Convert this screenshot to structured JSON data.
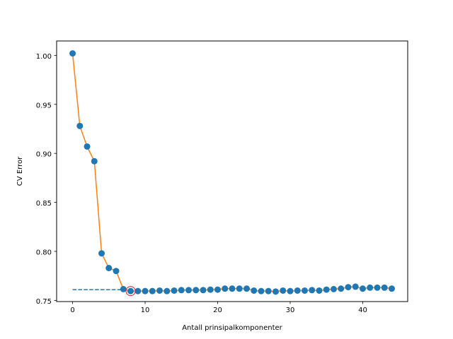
{
  "chart_data": {
    "type": "line",
    "title": "",
    "xlabel": "Antall prinsipalkomponenter",
    "ylabel": "CV Error",
    "xlim": [
      -2.2,
      46.2
    ],
    "ylim": [
      0.7488,
      1.0147
    ],
    "xticks": [
      0,
      10,
      20,
      30,
      40
    ],
    "yticks": [
      0.75,
      0.8,
      0.85,
      0.9,
      0.95,
      1.0
    ],
    "ytick_labels": [
      "0.75",
      "0.80",
      "0.85",
      "0.90",
      "0.95",
      "1.00"
    ],
    "grid": false,
    "legend": "none",
    "series": [
      {
        "style": "line-with-markers",
        "line_color": "#ff7f0e",
        "marker_color": "#1f77b4",
        "x": [
          0,
          1,
          2,
          3,
          4,
          5,
          6,
          7,
          8,
          9,
          10,
          11,
          12,
          13,
          14,
          15,
          16,
          17,
          18,
          19,
          20,
          21,
          22,
          23,
          24,
          25,
          26,
          27,
          28,
          29,
          30,
          31,
          32,
          33,
          34,
          35,
          36,
          37,
          38,
          39,
          40,
          41,
          42,
          43,
          44
        ],
        "y": [
          1.002,
          0.928,
          0.907,
          0.892,
          0.798,
          0.783,
          0.78,
          0.7615,
          0.7595,
          0.7595,
          0.7595,
          0.7595,
          0.76,
          0.7595,
          0.76,
          0.7605,
          0.7605,
          0.7605,
          0.7605,
          0.761,
          0.761,
          0.762,
          0.762,
          0.762,
          0.762,
          0.76,
          0.7595,
          0.7595,
          0.759,
          0.76,
          0.7595,
          0.76,
          0.76,
          0.7605,
          0.76,
          0.761,
          0.7615,
          0.762,
          0.7635,
          0.764,
          0.762,
          0.763,
          0.763,
          0.763,
          0.762
        ]
      }
    ],
    "reference_line": {
      "style": "dashed",
      "color": "#1f77b4",
      "y": 0.761,
      "x_start": 0,
      "x_end": 8
    },
    "highlight": {
      "x": 8,
      "y": 0.7595,
      "color": "#d62728"
    }
  }
}
